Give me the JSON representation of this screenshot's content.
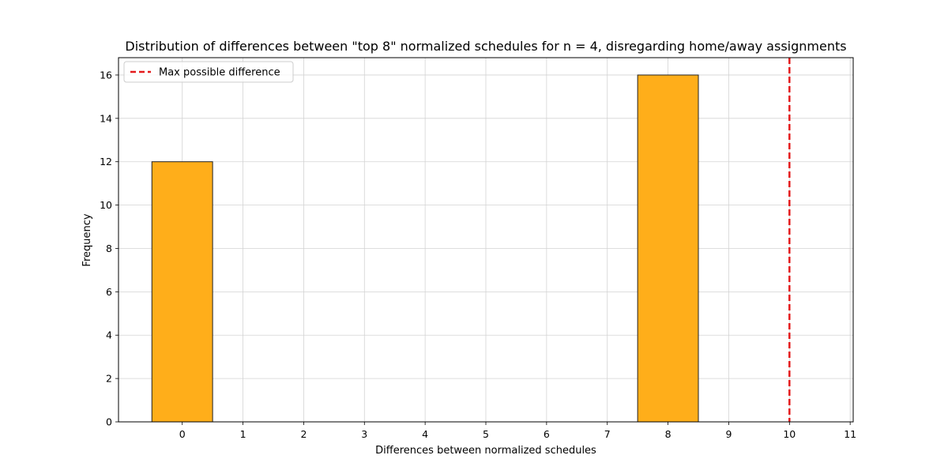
{
  "chart_data": {
    "type": "bar",
    "title": "Distribution of differences between \"top 8\" normalized schedules for n = 4, disregarding home/away assignments",
    "xlabel": "Differences between normalized schedules",
    "ylabel": "Frequency",
    "x": [
      0,
      1,
      2,
      3,
      4,
      5,
      6,
      7,
      8,
      9,
      10
    ],
    "values": [
      12,
      0,
      0,
      0,
      0,
      0,
      0,
      0,
      16,
      0,
      0
    ],
    "bin_width": 1,
    "xlim": [
      -1.05,
      11.05
    ],
    "ylim": [
      0,
      16.8
    ],
    "xticks": [
      0,
      1,
      2,
      3,
      4,
      5,
      6,
      7,
      8,
      9,
      10,
      11
    ],
    "yticks": [
      0,
      2,
      4,
      6,
      8,
      10,
      12,
      14,
      16
    ],
    "grid": true,
    "bar_color": "#ffae1a",
    "bar_edge_color": "#222222",
    "reference_line": {
      "x": 10,
      "label": "Max possible difference",
      "color": "#e41a1c",
      "style": "dashed"
    },
    "legend_position": "top-left"
  }
}
